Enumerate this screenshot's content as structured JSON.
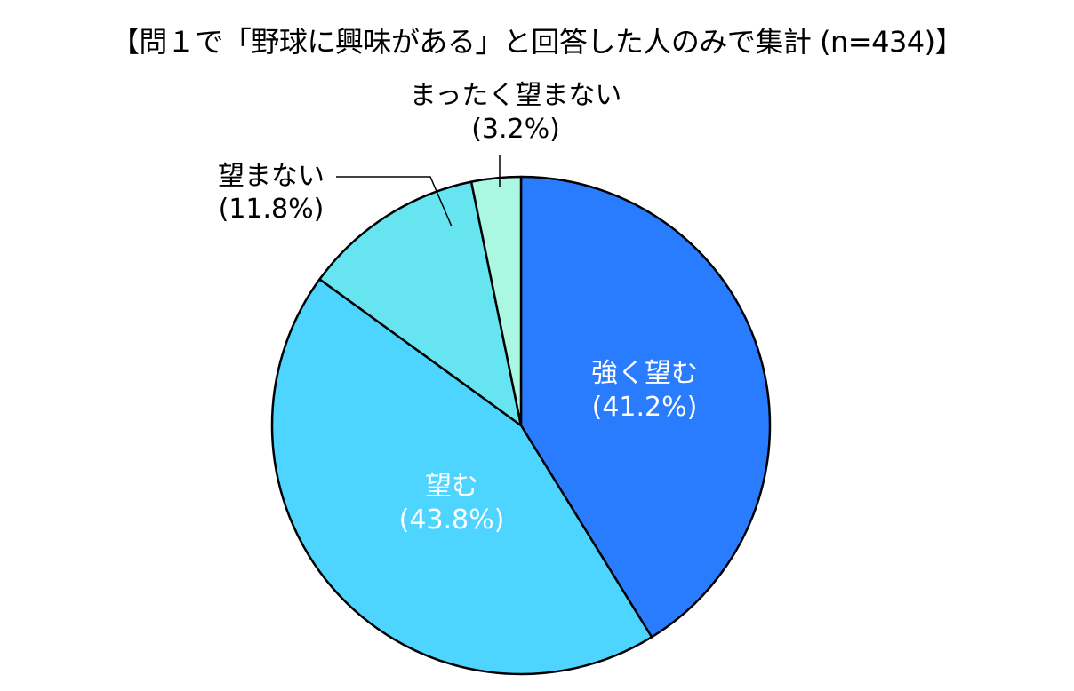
{
  "chart_data": {
    "type": "pie",
    "title": "【問１で「野球に興味がある」と回答した人のみで集計 (n=434)】",
    "slices": [
      {
        "label": "強く望む",
        "value": 41.2,
        "pct_label": "(41.2%)",
        "color": "#2a7cff",
        "label_color": "#ffffff"
      },
      {
        "label": "望む",
        "value": 43.8,
        "pct_label": "(43.8%)",
        "color": "#4dd5ff",
        "label_color": "#ffffff"
      },
      {
        "label": "望まない",
        "value": 11.8,
        "pct_label": "(11.8%)",
        "color": "#66e5f0",
        "label_color": "#000000"
      },
      {
        "label": "まったく望まない",
        "value": 3.2,
        "pct_label": "(3.2%)",
        "color": "#aaf7e2",
        "label_color": "#000000"
      }
    ],
    "start": "12 o'clock",
    "direction": "clockwise",
    "legend": "none"
  }
}
